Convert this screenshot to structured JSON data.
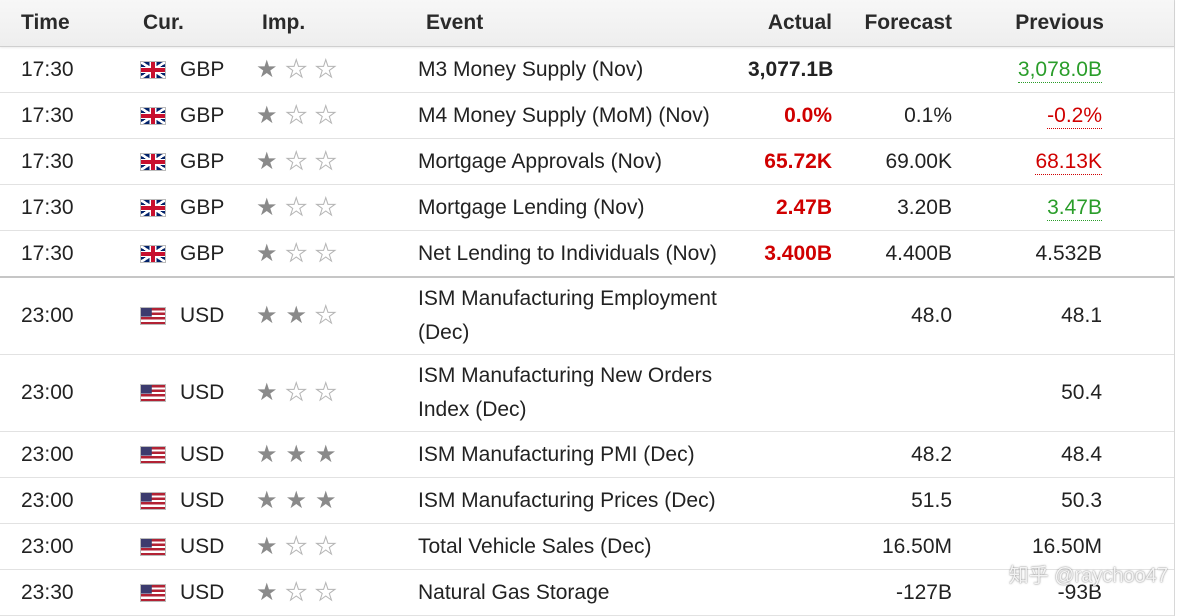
{
  "header": {
    "time": "Time",
    "currency": "Cur.",
    "importance": "Imp.",
    "event": "Event",
    "actual": "Actual",
    "forecast": "Forecast",
    "previous": "Previous"
  },
  "rows": [
    {
      "time": "17:30",
      "flag": "uk-flag-icon",
      "currency": "GBP",
      "importance": 1,
      "event_line1": "M3 Money Supply (Nov)",
      "event_line2": "",
      "actual": "3,077.1B",
      "actual_status": "neutral",
      "forecast": "",
      "previous": "3,078.0B",
      "previous_status": "green"
    },
    {
      "time": "17:30",
      "flag": "uk-flag-icon",
      "currency": "GBP",
      "importance": 1,
      "event_line1": "M4 Money Supply (MoM) (Nov)",
      "event_line2": "",
      "actual": "0.0%",
      "actual_status": "red",
      "forecast": "0.1%",
      "previous": "-0.2%",
      "previous_status": "red"
    },
    {
      "time": "17:30",
      "flag": "uk-flag-icon",
      "currency": "GBP",
      "importance": 1,
      "event_line1": "Mortgage Approvals (Nov)",
      "event_line2": "",
      "actual": "65.72K",
      "actual_status": "red",
      "forecast": "69.00K",
      "previous": "68.13K",
      "previous_status": "red"
    },
    {
      "time": "17:30",
      "flag": "uk-flag-icon",
      "currency": "GBP",
      "importance": 1,
      "event_line1": "Mortgage Lending (Nov)",
      "event_line2": "",
      "actual": "2.47B",
      "actual_status": "red",
      "forecast": "3.20B",
      "previous": "3.47B",
      "previous_status": "green"
    },
    {
      "time": "17:30",
      "flag": "uk-flag-icon",
      "currency": "GBP",
      "importance": 1,
      "event_line1": "Net Lending to Individuals (Nov)",
      "event_line2": "",
      "actual": "3.400B",
      "actual_status": "red",
      "forecast": "4.400B",
      "previous": "4.532B",
      "previous_status": "neutral"
    },
    {
      "time": "23:00",
      "flag": "us-flag-icon",
      "currency": "USD",
      "importance": 2,
      "event_line1": "ISM Manufacturing Employment",
      "event_line2": "(Dec)",
      "actual": "",
      "actual_status": "neutral",
      "forecast": "48.0",
      "previous": "48.1",
      "previous_status": "neutral"
    },
    {
      "time": "23:00",
      "flag": "us-flag-icon",
      "currency": "USD",
      "importance": 1,
      "event_line1": "ISM Manufacturing New Orders",
      "event_line2": "Index (Dec)",
      "actual": "",
      "actual_status": "neutral",
      "forecast": "",
      "previous": "50.4",
      "previous_status": "neutral"
    },
    {
      "time": "23:00",
      "flag": "us-flag-icon",
      "currency": "USD",
      "importance": 3,
      "event_line1": "ISM Manufacturing PMI (Dec)",
      "event_line2": "",
      "actual": "",
      "actual_status": "neutral",
      "forecast": "48.2",
      "previous": "48.4",
      "previous_status": "neutral"
    },
    {
      "time": "23:00",
      "flag": "us-flag-icon",
      "currency": "USD",
      "importance": 3,
      "event_line1": "ISM Manufacturing Prices (Dec)",
      "event_line2": "",
      "actual": "",
      "actual_status": "neutral",
      "forecast": "51.5",
      "previous": "50.3",
      "previous_status": "neutral"
    },
    {
      "time": "23:00",
      "flag": "us-flag-icon",
      "currency": "USD",
      "importance": 1,
      "event_line1": "Total Vehicle Sales (Dec)",
      "event_line2": "",
      "actual": "",
      "actual_status": "neutral",
      "forecast": "16.50M",
      "previous": "16.50M",
      "previous_status": "neutral"
    },
    {
      "time": "23:30",
      "flag": "us-flag-icon",
      "currency": "USD",
      "importance": 1,
      "event_line1": "Natural Gas Storage",
      "event_line2": "",
      "actual": "",
      "actual_status": "neutral",
      "forecast": "-127B",
      "previous": "-93B",
      "previous_status": "neutral"
    }
  ],
  "watermark": "知乎 @raychoo47"
}
